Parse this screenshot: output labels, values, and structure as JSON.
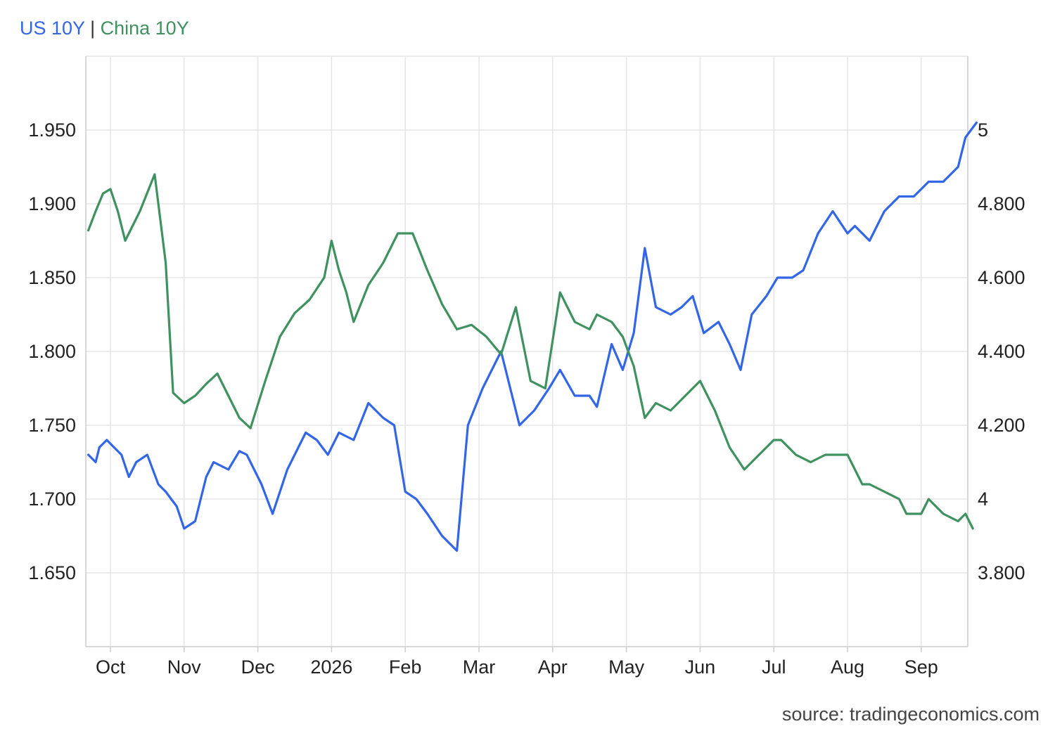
{
  "legend": {
    "series1": "US 10Y",
    "separator": "|",
    "series2": "China 10Y"
  },
  "source": "source: tradingeconomics.com",
  "colors": {
    "us": "#3366e6",
    "china": "#3f9160",
    "grid": "#e5e5e5",
    "axis": "#cccccc"
  },
  "chart_data": {
    "type": "line",
    "x_tick_labels": [
      "Oct",
      "Nov",
      "Dec",
      "2026",
      "Feb",
      "Mar",
      "Apr",
      "May",
      "Jun",
      "Jul",
      "Aug",
      "Sep"
    ],
    "y_left": {
      "range": [
        1.6,
        2.0
      ],
      "ticks": [
        1.65,
        1.7,
        1.75,
        1.8,
        1.85,
        1.9,
        1.95
      ],
      "tick_labels": [
        "1.650",
        "1.700",
        "1.750",
        "1.800",
        "1.850",
        "1.900",
        "1.950"
      ],
      "series": "China 10Y"
    },
    "y_right": {
      "range": [
        3.6,
        5.2
      ],
      "ticks": [
        3.8,
        4.0,
        4.2,
        4.4,
        4.6,
        4.8,
        5.0
      ],
      "tick_labels": [
        "3.800",
        "4",
        "4.200",
        "4.400",
        "4.600",
        "4.800",
        "5"
      ],
      "series": "US 10Y"
    },
    "grid": true,
    "legend_position": "top-left",
    "series": [
      {
        "name": "US 10Y",
        "axis": "right",
        "x_months": [
          -0.3,
          -0.2,
          -0.15,
          -0.05,
          0.05,
          0.15,
          0.25,
          0.35,
          0.5,
          0.65,
          0.75,
          0.9,
          1.0,
          1.15,
          1.3,
          1.4,
          1.6,
          1.75,
          1.85,
          2.05,
          2.2,
          2.4,
          2.55,
          2.65,
          2.8,
          2.95,
          3.1,
          3.3,
          3.5,
          3.7,
          3.85,
          4.0,
          4.15,
          4.3,
          4.5,
          4.7,
          4.85,
          5.05,
          5.3,
          5.55,
          5.75,
          5.95,
          6.1,
          6.3,
          6.5,
          6.6,
          6.8,
          6.95,
          7.1,
          7.25,
          7.4,
          7.6,
          7.75,
          7.9,
          8.05,
          8.25,
          8.4,
          8.55,
          8.7,
          8.9,
          9.05,
          9.25,
          9.4,
          9.6,
          9.8,
          10.0,
          10.1,
          10.3,
          10.5,
          10.7,
          10.9,
          11.1,
          11.3,
          11.5,
          11.6,
          11.75
        ],
        "values": [
          4.12,
          4.1,
          4.14,
          4.16,
          4.14,
          4.12,
          4.06,
          4.1,
          4.12,
          4.04,
          4.02,
          3.98,
          3.92,
          3.94,
          4.06,
          4.1,
          4.08,
          4.13,
          4.12,
          4.04,
          3.96,
          4.08,
          4.14,
          4.18,
          4.16,
          4.12,
          4.18,
          4.16,
          4.26,
          4.22,
          4.2,
          4.02,
          4.0,
          3.96,
          3.9,
          3.86,
          4.2,
          4.3,
          4.4,
          4.2,
          4.24,
          4.3,
          4.35,
          4.28,
          4.28,
          4.25,
          4.42,
          4.35,
          4.45,
          4.68,
          4.52,
          4.5,
          4.52,
          4.55,
          4.45,
          4.48,
          4.42,
          4.35,
          4.5,
          4.55,
          4.6,
          4.6,
          4.62,
          4.72,
          4.78,
          4.72,
          4.74,
          4.7,
          4.78,
          4.82,
          4.82,
          4.86,
          4.86,
          4.9,
          4.98,
          5.02
        ]
      },
      {
        "name": "China 10Y",
        "axis": "left",
        "x_months": [
          -0.3,
          -0.2,
          -0.1,
          0.0,
          0.1,
          0.2,
          0.4,
          0.6,
          0.75,
          0.85,
          1.0,
          1.15,
          1.3,
          1.45,
          1.6,
          1.75,
          1.9,
          2.1,
          2.3,
          2.5,
          2.7,
          2.9,
          3.0,
          3.1,
          3.2,
          3.3,
          3.5,
          3.7,
          3.9,
          4.1,
          4.3,
          4.5,
          4.7,
          4.9,
          5.1,
          5.3,
          5.5,
          5.7,
          5.9,
          6.1,
          6.3,
          6.5,
          6.6,
          6.8,
          6.95,
          7.1,
          7.25,
          7.4,
          7.6,
          7.8,
          8.0,
          8.2,
          8.4,
          8.6,
          8.8,
          9.0,
          9.1,
          9.3,
          9.5,
          9.7,
          9.9,
          10.0,
          10.1,
          10.2,
          10.3,
          10.5,
          10.7,
          10.8,
          10.9,
          11.0,
          11.1,
          11.3,
          11.5,
          11.6,
          11.7
        ],
        "values": [
          1.882,
          1.895,
          1.907,
          1.91,
          1.895,
          1.875,
          1.895,
          1.92,
          1.86,
          1.772,
          1.765,
          1.77,
          1.778,
          1.785,
          1.77,
          1.755,
          1.748,
          1.78,
          1.81,
          1.826,
          1.835,
          1.85,
          1.875,
          1.855,
          1.84,
          1.82,
          1.845,
          1.86,
          1.88,
          1.88,
          1.855,
          1.832,
          1.815,
          1.818,
          1.81,
          1.798,
          1.83,
          1.78,
          1.775,
          1.84,
          1.82,
          1.815,
          1.825,
          1.82,
          1.81,
          1.79,
          1.755,
          1.765,
          1.76,
          1.77,
          1.78,
          1.76,
          1.735,
          1.72,
          1.73,
          1.74,
          1.74,
          1.73,
          1.725,
          1.73,
          1.73,
          1.73,
          1.72,
          1.71,
          1.71,
          1.705,
          1.7,
          1.69,
          1.69,
          1.69,
          1.7,
          1.69,
          1.685,
          1.69,
          1.68
        ]
      }
    ]
  }
}
